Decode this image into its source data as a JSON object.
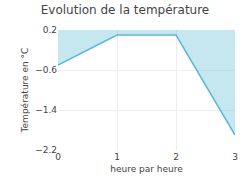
{
  "chart_data": {
    "type": "line",
    "title": "Evolution de la température",
    "xlabel": "heure par heure",
    "ylabel": "Température en °C",
    "x": [
      0,
      1,
      2,
      3
    ],
    "values": [
      -0.5,
      0.1,
      0.1,
      -1.9
    ],
    "fill_to": 0.2,
    "color": "#5bb8d4",
    "xlim": [
      0,
      3
    ],
    "ylim": [
      -2.2,
      0.2
    ],
    "xticks": [
      0,
      1,
      2,
      3
    ],
    "yticks": [
      0.2,
      -0.6,
      -1.4,
      -2.2
    ],
    "grid": true
  }
}
